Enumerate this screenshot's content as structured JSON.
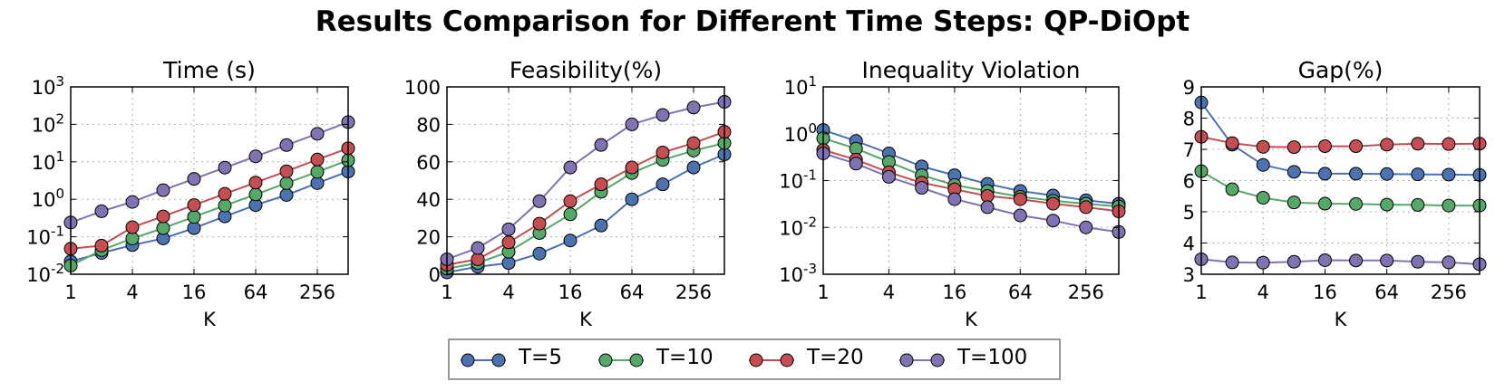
{
  "suptitle": "Results Comparison for Different Time Steps: QP-DiOpt",
  "colors": {
    "T=5": "#4c72b0",
    "T=10": "#55a868",
    "T=20": "#c44e52",
    "T=100": "#8172b2"
  },
  "legend": [
    {
      "label": "T=5",
      "color": "#4c72b0"
    },
    {
      "label": "T=10",
      "color": "#55a868"
    },
    {
      "label": "T=20",
      "color": "#c44e52"
    },
    {
      "label": "T=100",
      "color": "#8172b2"
    }
  ],
  "chart_data": [
    {
      "type": "line",
      "title": "Time (s)",
      "xlabel": "K",
      "ylabel": "",
      "x": [
        1,
        2,
        4,
        8,
        16,
        32,
        64,
        128,
        256,
        512
      ],
      "xscale": "log2",
      "xlim": [
        1,
        512
      ],
      "xticks": [
        1,
        4,
        16,
        64,
        256
      ],
      "yscale": "log",
      "ylim": [
        0.01,
        1000
      ],
      "yticks": [
        0.01,
        0.1,
        1,
        10,
        100,
        1000
      ],
      "ytick_labels": [
        [
          "10",
          "-2"
        ],
        [
          "10",
          "-1"
        ],
        [
          "10",
          "0"
        ],
        [
          "10",
          "1"
        ],
        [
          "10",
          "2"
        ],
        [
          "10",
          "3"
        ]
      ],
      "grid": true,
      "series": [
        {
          "name": "T=5",
          "values": [
            0.022,
            0.037,
            0.06,
            0.09,
            0.17,
            0.35,
            0.7,
            1.3,
            2.7,
            5.5
          ]
        },
        {
          "name": "T=10",
          "values": [
            0.017,
            0.044,
            0.09,
            0.17,
            0.34,
            0.68,
            1.35,
            2.7,
            5.4,
            11
          ]
        },
        {
          "name": "T=20",
          "values": [
            0.048,
            0.058,
            0.18,
            0.35,
            0.7,
            1.4,
            2.8,
            5.6,
            11.5,
            23
          ]
        },
        {
          "name": "T=100",
          "values": [
            0.24,
            0.48,
            0.85,
            1.75,
            3.5,
            7.0,
            14,
            28,
            56,
            115
          ]
        }
      ]
    },
    {
      "type": "line",
      "title": "Feasibility(%)",
      "xlabel": "K",
      "ylabel": "",
      "x": [
        1,
        2,
        4,
        8,
        16,
        32,
        64,
        128,
        256,
        512
      ],
      "xscale": "log2",
      "xlim": [
        1,
        512
      ],
      "xticks": [
        1,
        4,
        16,
        64,
        256
      ],
      "yscale": "linear",
      "ylim": [
        0,
        100
      ],
      "yticks": [
        0,
        20,
        40,
        60,
        80,
        100
      ],
      "ytick_labels": [
        "0",
        "20",
        "40",
        "60",
        "80",
        "100"
      ],
      "grid": true,
      "series": [
        {
          "name": "T=5",
          "values": [
            1,
            4,
            6,
            11,
            18,
            26,
            40,
            48,
            57,
            64
          ]
        },
        {
          "name": "T=10",
          "values": [
            3,
            6,
            12,
            22,
            32,
            44,
            54,
            61,
            66,
            70
          ]
        },
        {
          "name": "T=20",
          "values": [
            5,
            8,
            17,
            27,
            39,
            48,
            57,
            65,
            70,
            76
          ]
        },
        {
          "name": "T=100",
          "values": [
            8,
            14,
            24,
            39,
            57,
            69,
            80,
            85,
            89,
            92
          ]
        }
      ]
    },
    {
      "type": "line",
      "title": "Inequality Violation",
      "xlabel": "K",
      "ylabel": "",
      "x": [
        1,
        2,
        4,
        8,
        16,
        32,
        64,
        128,
        256,
        512
      ],
      "xscale": "log2",
      "xlim": [
        1,
        512
      ],
      "xticks": [
        1,
        4,
        16,
        64,
        256
      ],
      "yscale": "log",
      "ylim": [
        0.001,
        10
      ],
      "yticks": [
        0.001,
        0.01,
        0.1,
        1,
        10
      ],
      "ytick_labels": [
        [
          "10",
          "-3"
        ],
        [
          "10",
          "-2"
        ],
        [
          "10",
          "-1"
        ],
        [
          "10",
          "0"
        ],
        [
          "10",
          "1"
        ]
      ],
      "grid": true,
      "series": [
        {
          "name": "T=5",
          "values": [
            1.2,
            0.7,
            0.38,
            0.2,
            0.13,
            0.085,
            0.06,
            0.048,
            0.038,
            0.032
          ]
        },
        {
          "name": "T=10",
          "values": [
            0.8,
            0.48,
            0.25,
            0.13,
            0.08,
            0.06,
            0.045,
            0.037,
            0.032,
            0.028
          ]
        },
        {
          "name": "T=20",
          "values": [
            0.45,
            0.28,
            0.15,
            0.09,
            0.065,
            0.047,
            0.04,
            0.032,
            0.027,
            0.022
          ]
        },
        {
          "name": "T=100",
          "values": [
            0.38,
            0.23,
            0.12,
            0.07,
            0.04,
            0.027,
            0.018,
            0.014,
            0.01,
            0.008
          ]
        }
      ]
    },
    {
      "type": "line",
      "title": "Gap(%)",
      "xlabel": "K",
      "ylabel": "",
      "x": [
        1,
        2,
        4,
        8,
        16,
        32,
        64,
        128,
        256,
        512
      ],
      "xscale": "log2",
      "xlim": [
        1,
        512
      ],
      "xticks": [
        1,
        4,
        16,
        64,
        256
      ],
      "yscale": "linear",
      "ylim": [
        3,
        9
      ],
      "yticks": [
        3,
        4,
        5,
        6,
        7,
        8,
        9
      ],
      "ytick_labels": [
        "3",
        "4",
        "5",
        "6",
        "7",
        "8",
        "9"
      ],
      "grid": true,
      "series": [
        {
          "name": "T=5",
          "values": [
            8.5,
            7.15,
            6.5,
            6.28,
            6.22,
            6.22,
            6.21,
            6.2,
            6.19,
            6.18
          ]
        },
        {
          "name": "T=10",
          "values": [
            6.3,
            5.72,
            5.45,
            5.3,
            5.26,
            5.25,
            5.23,
            5.22,
            5.2,
            5.2
          ]
        },
        {
          "name": "T=20",
          "values": [
            7.4,
            7.2,
            7.08,
            7.07,
            7.1,
            7.1,
            7.15,
            7.18,
            7.17,
            7.18
          ]
        },
        {
          "name": "T=100",
          "values": [
            3.48,
            3.38,
            3.37,
            3.4,
            3.45,
            3.44,
            3.44,
            3.4,
            3.38,
            3.32
          ]
        }
      ]
    }
  ]
}
